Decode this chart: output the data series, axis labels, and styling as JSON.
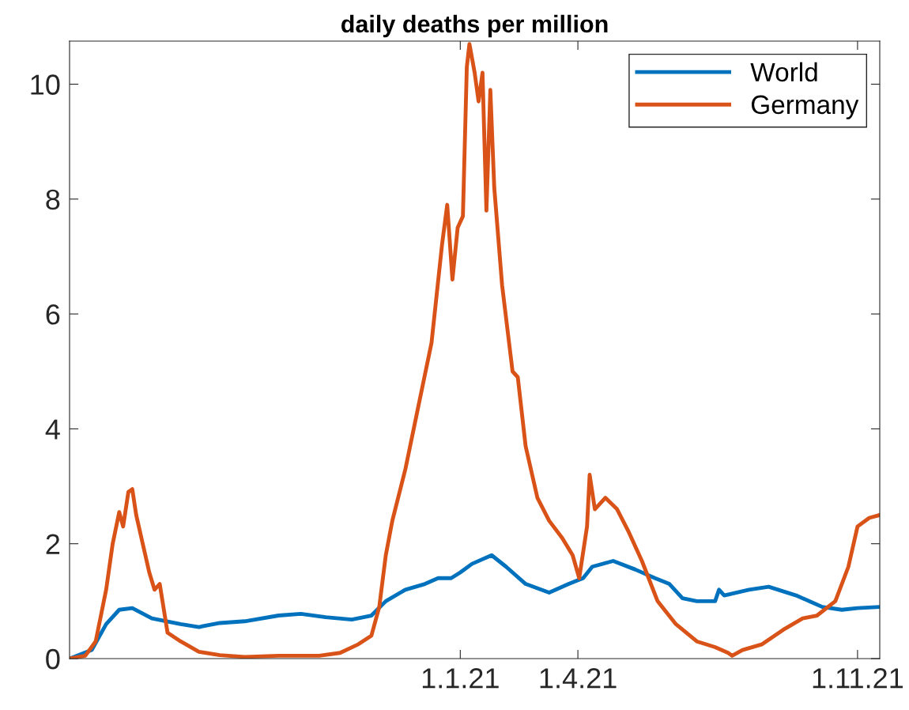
{
  "chart_data": {
    "type": "line",
    "title": "daily deaths per million",
    "xlim": [
      "2020-03-08",
      "2021-11-18"
    ],
    "ylim": [
      0,
      10.75
    ],
    "yticks": [
      0,
      2,
      4,
      6,
      8,
      10
    ],
    "xticks": [
      {
        "value": "2021-01-01",
        "label": "1.1.21"
      },
      {
        "value": "2021-04-01",
        "label": "1.4.21"
      },
      {
        "value": "2021-11-01",
        "label": "1.11.21"
      }
    ],
    "legend": "top right",
    "grid": false,
    "line_style": "solid",
    "marker": "none",
    "series": [
      {
        "name": "World",
        "color": "#0072bd",
        "x": [
          "2020-03-08",
          "2020-03-25",
          "2020-04-05",
          "2020-04-15",
          "2020-04-25",
          "2020-05-10",
          "2020-06-01",
          "2020-06-15",
          "2020-07-01",
          "2020-07-20",
          "2020-08-15",
          "2020-09-01",
          "2020-09-20",
          "2020-10-10",
          "2020-10-25",
          "2020-11-05",
          "2020-11-20",
          "2020-12-05",
          "2020-12-15",
          "2020-12-25",
          "2021-01-01",
          "2021-01-10",
          "2021-01-25",
          "2021-02-05",
          "2021-02-20",
          "2021-03-10",
          "2021-03-25",
          "2021-04-05",
          "2021-04-12",
          "2021-04-28",
          "2021-05-15",
          "2021-05-30",
          "2021-06-10",
          "2021-06-20",
          "2021-07-01",
          "2021-07-15",
          "2021-07-18",
          "2021-07-22",
          "2021-08-10",
          "2021-08-25",
          "2021-09-15",
          "2021-10-05",
          "2021-10-20",
          "2021-11-01",
          "2021-11-18"
        ],
        "values": [
          0,
          0.15,
          0.6,
          0.85,
          0.88,
          0.7,
          0.6,
          0.55,
          0.62,
          0.65,
          0.75,
          0.78,
          0.72,
          0.68,
          0.75,
          1.0,
          1.2,
          1.3,
          1.4,
          1.4,
          1.5,
          1.65,
          1.8,
          1.6,
          1.3,
          1.15,
          1.3,
          1.4,
          1.6,
          1.7,
          1.55,
          1.4,
          1.3,
          1.05,
          1.0,
          1.0,
          1.2,
          1.1,
          1.2,
          1.25,
          1.1,
          0.9,
          0.85,
          0.88,
          0.9
        ]
      },
      {
        "name": "Germany",
        "color": "#d95319",
        "x": [
          "2020-03-08",
          "2020-03-20",
          "2020-03-28",
          "2020-04-05",
          "2020-04-10",
          "2020-04-15",
          "2020-04-18",
          "2020-04-22",
          "2020-04-25",
          "2020-04-28",
          "2020-05-03",
          "2020-05-08",
          "2020-05-12",
          "2020-05-16",
          "2020-05-22",
          "2020-06-01",
          "2020-06-15",
          "2020-07-01",
          "2020-07-20",
          "2020-08-15",
          "2020-09-15",
          "2020-10-01",
          "2020-10-15",
          "2020-10-25",
          "2020-10-31",
          "2020-11-05",
          "2020-11-10",
          "2020-11-20",
          "2020-11-30",
          "2020-12-10",
          "2020-12-18",
          "2020-12-22",
          "2020-12-26",
          "2020-12-30",
          "2021-01-03",
          "2021-01-06",
          "2021-01-08",
          "2021-01-12",
          "2021-01-15",
          "2021-01-18",
          "2021-01-21",
          "2021-01-24",
          "2021-01-27",
          "2021-02-02",
          "2021-02-10",
          "2021-02-14",
          "2021-02-20",
          "2021-03-01",
          "2021-03-10",
          "2021-03-20",
          "2021-03-28",
          "2021-04-02",
          "2021-04-08",
          "2021-04-10",
          "2021-04-14",
          "2021-04-22",
          "2021-05-01",
          "2021-05-10",
          "2021-05-20",
          "2021-06-01",
          "2021-06-15",
          "2021-07-01",
          "2021-07-15",
          "2021-07-25",
          "2021-07-28",
          "2021-08-05",
          "2021-08-20",
          "2021-09-05",
          "2021-09-20",
          "2021-10-01",
          "2021-10-15",
          "2021-10-25",
          "2021-11-01",
          "2021-11-10",
          "2021-11-18"
        ],
        "values": [
          0,
          0.05,
          0.3,
          1.2,
          2.0,
          2.55,
          2.3,
          2.9,
          2.95,
          2.5,
          2.0,
          1.5,
          1.2,
          1.3,
          0.45,
          0.3,
          0.12,
          0.06,
          0.03,
          0.05,
          0.05,
          0.1,
          0.25,
          0.4,
          0.9,
          1.8,
          2.4,
          3.3,
          4.4,
          5.5,
          7.2,
          7.9,
          6.6,
          7.5,
          7.7,
          10.3,
          10.7,
          10.2,
          9.7,
          10.2,
          7.8,
          9.9,
          8.2,
          6.5,
          5.0,
          4.9,
          3.7,
          2.8,
          2.4,
          2.1,
          1.8,
          1.4,
          2.3,
          3.2,
          2.6,
          2.8,
          2.6,
          2.2,
          1.7,
          1.0,
          0.6,
          0.3,
          0.2,
          0.1,
          0.05,
          0.15,
          0.25,
          0.5,
          0.7,
          0.75,
          1.0,
          1.6,
          2.3,
          2.45,
          2.5
        ]
      }
    ]
  }
}
